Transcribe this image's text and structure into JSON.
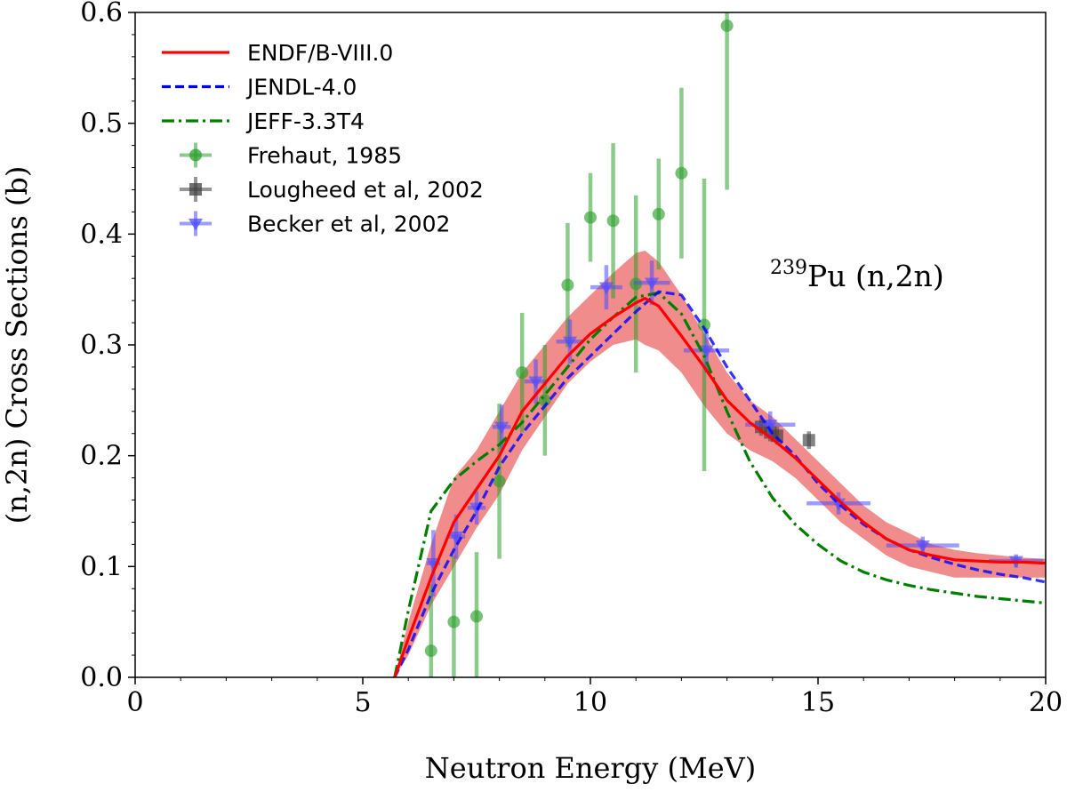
{
  "chart_data": {
    "type": "line",
    "title": "",
    "xlabel": "Neutron Energy (MeV)",
    "ylabel": "(n,2n) Cross Sections (b)",
    "xlim": [
      0,
      20
    ],
    "ylim": [
      0,
      0.6
    ],
    "xticks": [
      0,
      5,
      10,
      15,
      20
    ],
    "xtick_labels": [
      "0",
      "5",
      "10",
      "15",
      "20"
    ],
    "yticks": [
      0.0,
      0.1,
      0.2,
      0.3,
      0.4,
      0.5,
      0.6
    ],
    "ytick_labels": [
      "0.0",
      "0.1",
      "0.2",
      "0.3",
      "0.4",
      "0.5",
      "0.6"
    ],
    "annotation": {
      "mass_number": "239",
      "text": "Pu (n,2n)"
    },
    "legend_position": "upper-left",
    "uncertainty_band": {
      "name": "ENDF/B-VIII.0 uncertainty",
      "color": "#f08080",
      "x": [
        5.7,
        6.0,
        6.5,
        7.0,
        7.5,
        8.0,
        8.5,
        9.0,
        9.5,
        10.0,
        10.5,
        11.0,
        11.2,
        11.5,
        12.0,
        12.5,
        13.0,
        13.5,
        14.0,
        14.5,
        15.0,
        15.5,
        16.0,
        16.5,
        17.0,
        17.5,
        18.0,
        18.5,
        19.0,
        19.5,
        20.0
      ],
      "upper": [
        0.0,
        0.05,
        0.12,
        0.18,
        0.205,
        0.24,
        0.275,
        0.3,
        0.325,
        0.345,
        0.365,
        0.383,
        0.385,
        0.375,
        0.345,
        0.31,
        0.275,
        0.25,
        0.235,
        0.215,
        0.195,
        0.175,
        0.155,
        0.14,
        0.13,
        0.12,
        0.115,
        0.112,
        0.11,
        0.108,
        0.107
      ],
      "lower": [
        0.0,
        0.02,
        0.065,
        0.1,
        0.135,
        0.165,
        0.205,
        0.235,
        0.265,
        0.285,
        0.3,
        0.305,
        0.3,
        0.295,
        0.275,
        0.245,
        0.22,
        0.205,
        0.195,
        0.18,
        0.16,
        0.14,
        0.125,
        0.11,
        0.1,
        0.095,
        0.09,
        0.09,
        0.09,
        0.09,
        0.09
      ]
    },
    "series": [
      {
        "name": "ENDF/B-VIII.0",
        "kind": "line",
        "style": "solid",
        "color": "#ff0000",
        "x": [
          5.7,
          6.0,
          6.5,
          7.0,
          7.5,
          8.0,
          8.5,
          9.0,
          9.5,
          10.0,
          10.5,
          11.0,
          11.2,
          11.5,
          12.0,
          12.5,
          13.0,
          13.5,
          14.0,
          14.5,
          15.0,
          15.5,
          16.0,
          16.5,
          17.0,
          17.5,
          18.0,
          18.5,
          19.0,
          19.5,
          20.0
        ],
        "y": [
          0.0,
          0.035,
          0.09,
          0.14,
          0.17,
          0.2,
          0.24,
          0.265,
          0.29,
          0.31,
          0.325,
          0.338,
          0.342,
          0.335,
          0.308,
          0.28,
          0.25,
          0.23,
          0.215,
          0.198,
          0.178,
          0.158,
          0.14,
          0.125,
          0.115,
          0.11,
          0.106,
          0.105,
          0.104,
          0.104,
          0.103
        ]
      },
      {
        "name": "JENDL-4.0",
        "kind": "line",
        "style": "dashed",
        "color": "#0000ff",
        "x": [
          5.7,
          6.0,
          6.5,
          7.0,
          7.5,
          8.0,
          8.5,
          9.0,
          9.5,
          10.0,
          10.5,
          11.0,
          11.5,
          12.0,
          12.5,
          13.0,
          13.5,
          14.0,
          14.5,
          15.0,
          15.5,
          16.0,
          16.5,
          17.0,
          17.5,
          18.0,
          18.5,
          19.0,
          19.5,
          20.0
        ],
        "y": [
          0.0,
          0.025,
          0.075,
          0.115,
          0.15,
          0.19,
          0.22,
          0.245,
          0.27,
          0.29,
          0.31,
          0.33,
          0.348,
          0.345,
          0.315,
          0.28,
          0.25,
          0.22,
          0.2,
          0.175,
          0.155,
          0.138,
          0.125,
          0.115,
          0.108,
          0.102,
          0.097,
          0.093,
          0.09,
          0.086
        ]
      },
      {
        "name": "JEFF-3.3T4",
        "kind": "line",
        "style": "dashdot",
        "color": "#008000",
        "x": [
          5.7,
          6.0,
          6.5,
          7.0,
          7.5,
          8.0,
          8.5,
          9.0,
          9.5,
          10.0,
          10.5,
          11.0,
          11.5,
          12.0,
          12.5,
          13.0,
          13.5,
          14.0,
          14.5,
          15.0,
          15.5,
          16.0,
          16.5,
          17.0,
          17.5,
          18.0,
          18.5,
          19.0,
          19.5,
          20.0
        ],
        "y": [
          0.0,
          0.06,
          0.15,
          0.178,
          0.195,
          0.21,
          0.23,
          0.255,
          0.28,
          0.305,
          0.325,
          0.343,
          0.347,
          0.328,
          0.29,
          0.24,
          0.195,
          0.162,
          0.138,
          0.12,
          0.105,
          0.095,
          0.088,
          0.083,
          0.079,
          0.076,
          0.073,
          0.071,
          0.069,
          0.067
        ]
      },
      {
        "name": "Frehaut, 1985",
        "kind": "points",
        "marker": "circle",
        "color": "#2ca02c",
        "x": [
          6.5,
          7.0,
          7.5,
          8.0,
          8.5,
          9.0,
          9.5,
          10.0,
          10.5,
          11.0,
          11.5,
          12.0,
          12.5,
          13.0
        ],
        "y": [
          0.024,
          0.05,
          0.055,
          0.177,
          0.275,
          0.25,
          0.354,
          0.415,
          0.412,
          0.355,
          0.418,
          0.455,
          0.318,
          0.588
        ],
        "yerr": [
          0.06,
          0.06,
          0.058,
          0.07,
          0.054,
          0.05,
          0.056,
          0.04,
          0.07,
          0.08,
          0.05,
          0.077,
          0.132,
          0.148
        ]
      },
      {
        "name": "Lougheed et al, 2002",
        "kind": "points",
        "marker": "square",
        "color": "#404040",
        "x": [
          13.75,
          13.95,
          14.1,
          14.8
        ],
        "y": [
          0.226,
          0.221,
          0.218,
          0.214
        ],
        "yerr": [
          0.008,
          0.008,
          0.008,
          0.008
        ]
      },
      {
        "name": "Becker et al, 2002",
        "kind": "points",
        "marker": "triangle-down",
        "color": "#4d4dff",
        "x": [
          6.55,
          7.05,
          7.5,
          8.05,
          8.8,
          9.55,
          10.35,
          11.35,
          12.55,
          13.95,
          15.45,
          17.3,
          19.35
        ],
        "y": [
          0.103,
          0.127,
          0.153,
          0.226,
          0.267,
          0.303,
          0.352,
          0.356,
          0.295,
          0.228,
          0.157,
          0.119,
          0.105
        ],
        "xerr": [
          0.15,
          0.2,
          0.2,
          0.2,
          0.25,
          0.3,
          0.35,
          0.4,
          0.5,
          0.55,
          0.7,
          0.8,
          0.6
        ],
        "yerr": [
          0.03,
          0.02,
          0.015,
          0.02,
          0.02,
          0.02,
          0.02,
          0.02,
          0.02,
          0.012,
          0.01,
          0.008,
          0.006
        ]
      }
    ]
  }
}
